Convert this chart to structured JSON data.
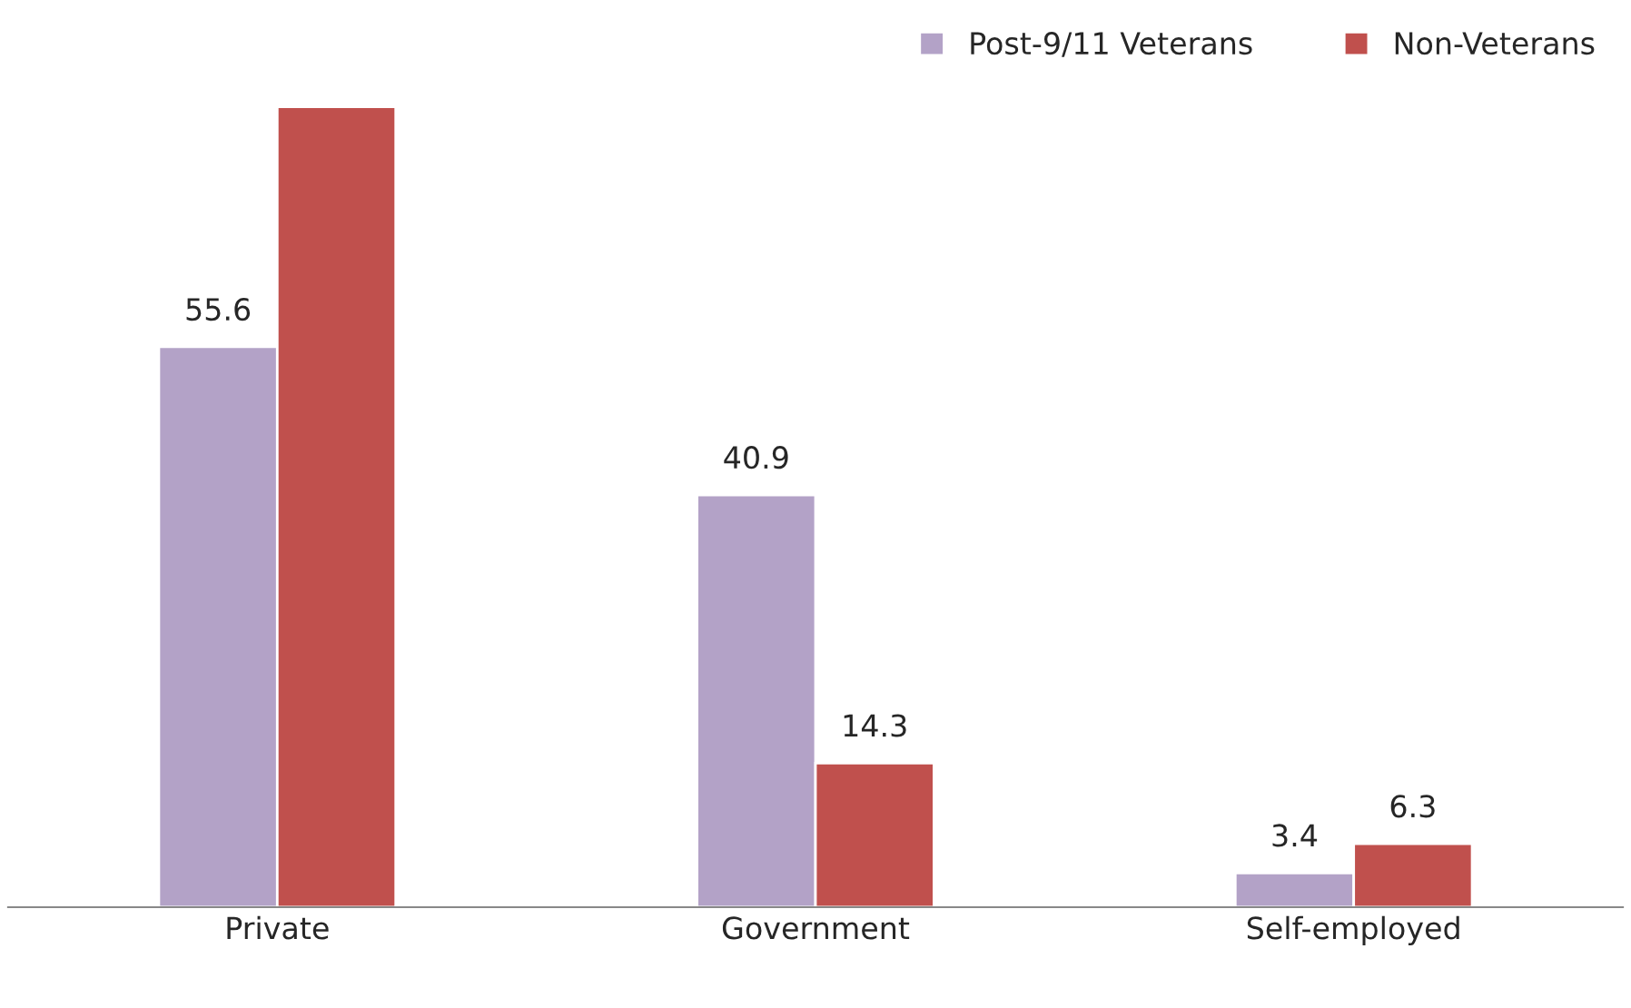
{
  "chart_data": {
    "type": "bar",
    "categories": [
      "Private",
      "Government",
      "Self-employed"
    ],
    "series": [
      {
        "name": "Post-9/11 Veterans",
        "color": "#b3a2c7",
        "values": [
          55.6,
          40.9,
          3.4
        ],
        "value_labels": [
          "55.6",
          "40.9",
          "3.4"
        ]
      },
      {
        "name": "Non-Veterans",
        "color": "#c0504d",
        "values": [
          79.4,
          14.3,
          6.3
        ],
        "value_labels": [
          null,
          "14.3",
          "6.3"
        ]
      }
    ],
    "ylim": [
      0,
      80
    ],
    "legend": "top right",
    "grid": false,
    "tick_labels": "x"
  }
}
